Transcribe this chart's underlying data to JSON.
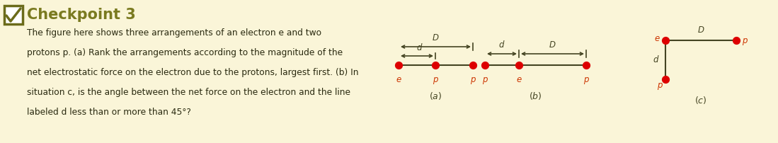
{
  "bg_color": "#faf5d8",
  "header_text": "Checkpoint 3",
  "header_text_color": "#7a7a20",
  "body_text_color": "#2a2a10",
  "body_lines": [
    "The figure here shows three arrangements of an electron e and two",
    "protons p. (a) Rank the arrangements according to the magnitude of the",
    "net electrostatic force on the electron due to the protons, largest first. (b) In",
    "situation c, is the angle between the net force on the electron and the line",
    "labeled d less than or more than 45°?"
  ],
  "dot_color": "#dd0000",
  "line_color": "#444422",
  "label_color": "#cc3300",
  "diag_label_color": "#444422",
  "checkbox_color": "#6b6b1a",
  "checkbox_fill": "#ffffff",
  "fig_w": 10.99,
  "fig_h": 2.02,
  "dpi": 100
}
